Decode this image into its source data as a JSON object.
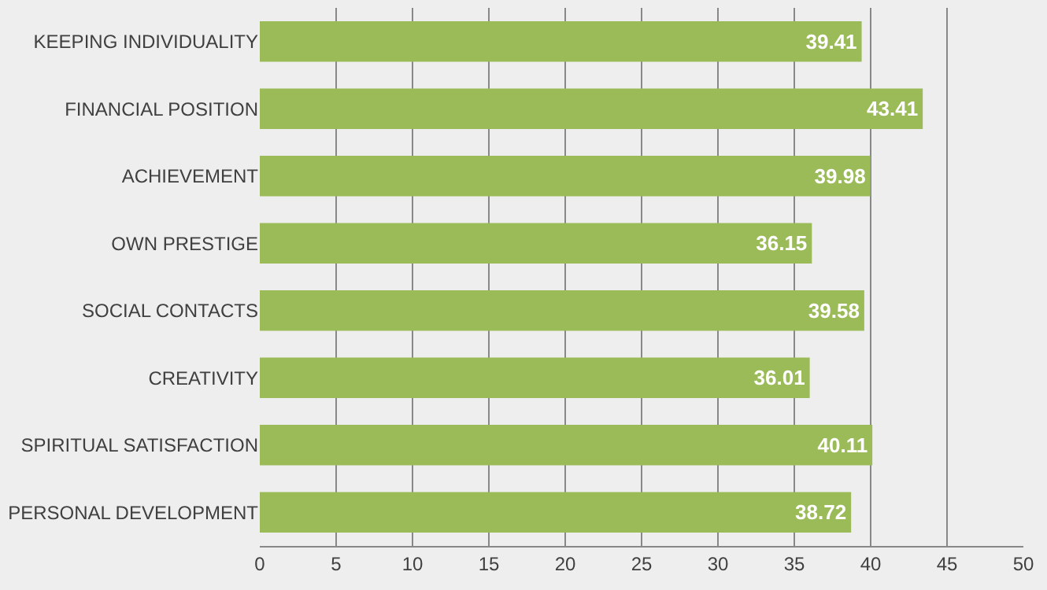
{
  "chart_data": {
    "type": "bar",
    "orientation": "horizontal",
    "categories": [
      "KEEPING INDIVIDUALITY",
      "FINANCIAL POSITION",
      "ACHIEVEMENT",
      "OWN PRESTIGE",
      "SOCIAL CONTACTS",
      "CREATIVITY",
      "SPIRITUAL SATISFACTION",
      "PERSONAL DEVELOPMENT"
    ],
    "values": [
      39.41,
      43.41,
      39.98,
      36.15,
      39.58,
      36.01,
      40.11,
      38.72
    ],
    "color": "#9bbb59",
    "data_labels": true,
    "grid": "x",
    "xlim": [
      0,
      50
    ],
    "xticks": [
      0,
      5,
      10,
      15,
      20,
      25,
      30,
      35,
      40,
      45,
      50
    ]
  }
}
